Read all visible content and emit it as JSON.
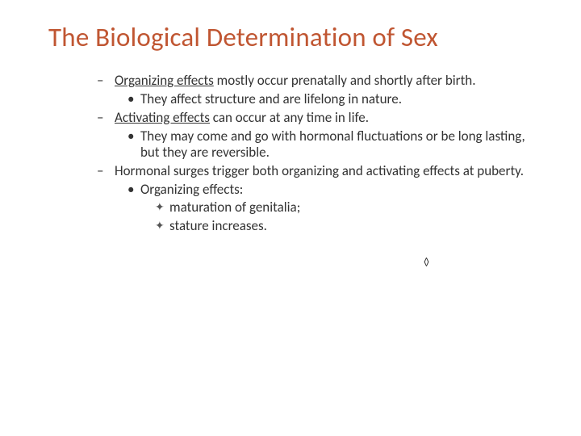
{
  "colors": {
    "title": "#c05632",
    "text": "#333333",
    "background": "#ffffff"
  },
  "typography": {
    "font_family": "Calibri",
    "title_fontsize_pt": 33,
    "body_fontsize_pt": 17,
    "title_weight": 400
  },
  "title": "The Biological Determination of Sex",
  "bullets": {
    "b1_lead": "Organizing effects",
    "b1_rest": " mostly occur prenatally and shortly after birth.",
    "b1a": "They affect structure and are lifelong in nature.",
    "b2_lead": "Activating effects",
    "b2_rest": " can occur at any time in life.",
    "b2a": "They may come and go with hormonal fluctuations or be long lasting, but they are reversible.",
    "b3": "Hormonal surges trigger both organizing and activating effects at puberty.",
    "b3a": "Organizing effects:",
    "b3a1": "maturation of genitalia;",
    "b3a2": "stature increases."
  },
  "trailing_glyph": "◊"
}
